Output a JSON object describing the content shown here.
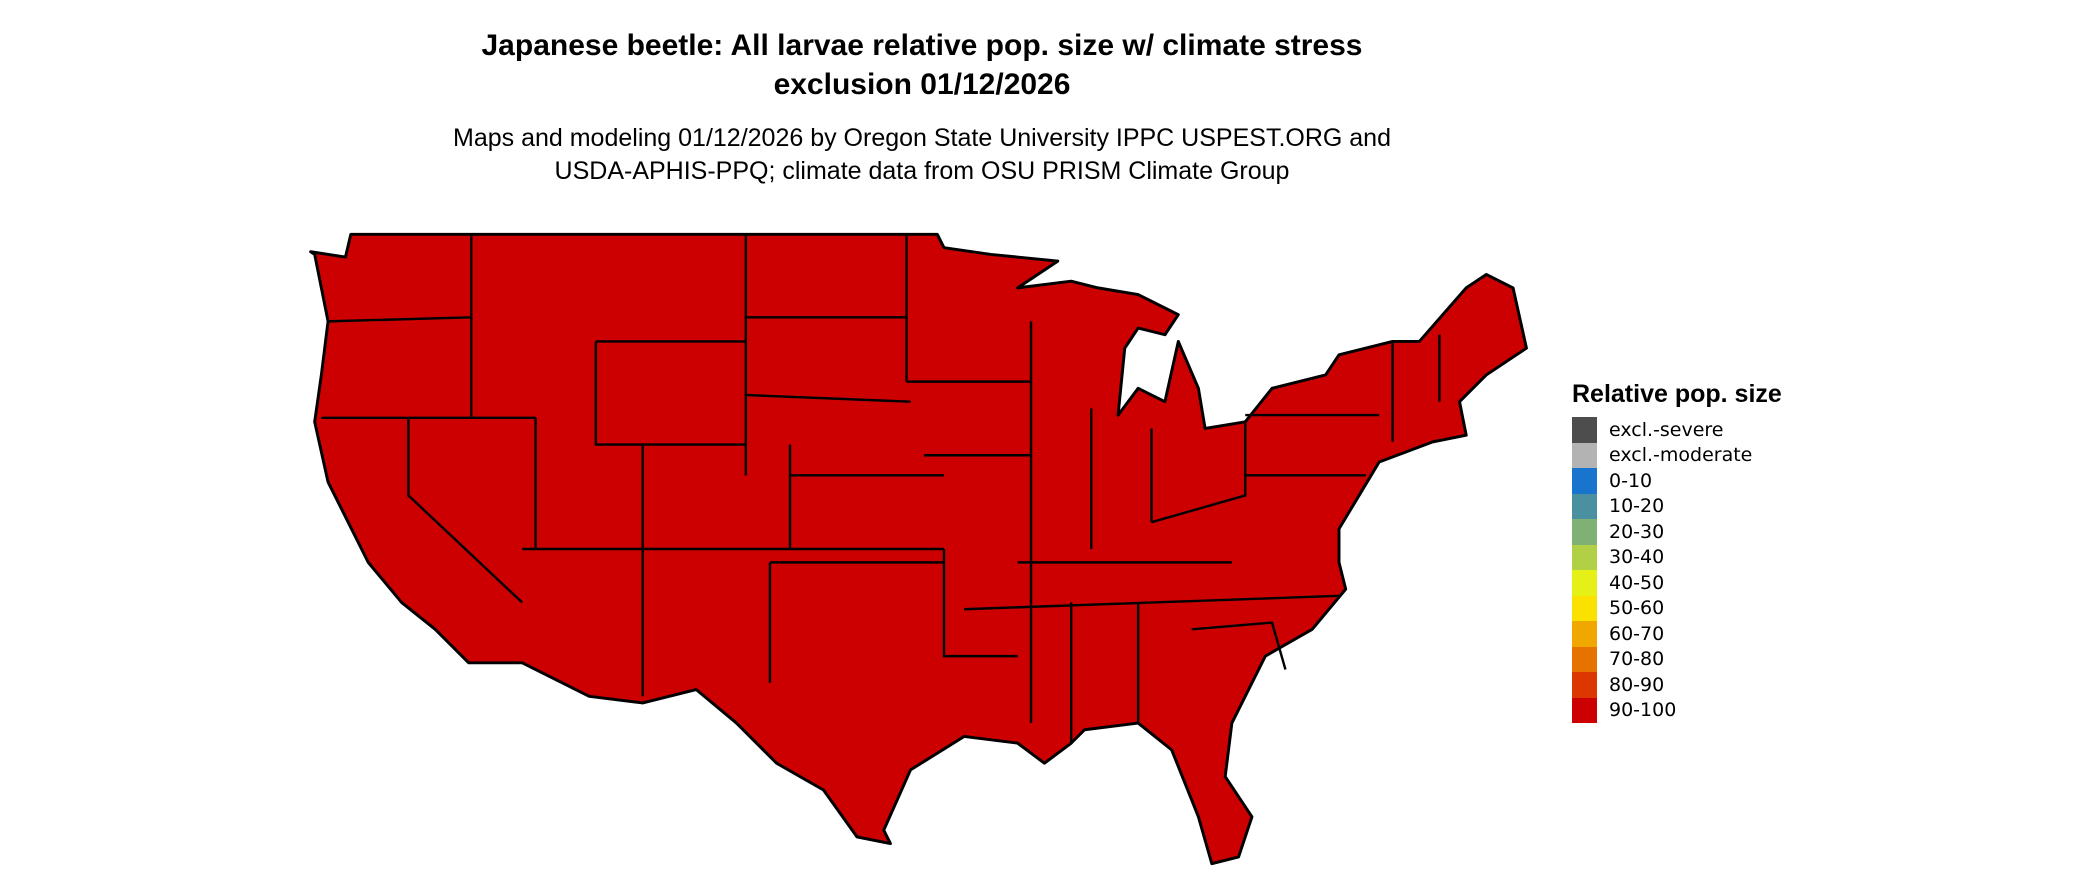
{
  "title": {
    "line1": "Japanese beetle: All larvae relative pop. size w/ climate stress",
    "line2": "exclusion 01/12/2026"
  },
  "subtitle": {
    "line1": "Maps and modeling 01/12/2026 by Oregon State University IPPC USPEST.ORG and",
    "line2": "USDA-APHIS-PPQ; climate data from OSU PRISM Climate Group"
  },
  "map": {
    "region": "Contiguous United States",
    "displayed_category": "90-100",
    "fill_color": "#CC0000",
    "border_color": "#000000"
  },
  "legend": {
    "title": "Relative pop. size",
    "items": [
      {
        "label": "excl.-severe",
        "color": "#4D4D4D"
      },
      {
        "label": "excl.-moderate",
        "color": "#B3B3B3"
      },
      {
        "label": "0-10",
        "color": "#1874CD"
      },
      {
        "label": "10-20",
        "color": "#4A90A0"
      },
      {
        "label": "20-30",
        "color": "#7FB074"
      },
      {
        "label": "30-40",
        "color": "#B2D046"
      },
      {
        "label": "40-50",
        "color": "#E5F016"
      },
      {
        "label": "50-60",
        "color": "#FAE100"
      },
      {
        "label": "60-70",
        "color": "#F0A800"
      },
      {
        "label": "70-80",
        "color": "#E67300"
      },
      {
        "label": "80-90",
        "color": "#DC3700"
      },
      {
        "label": "90-100",
        "color": "#CC0000"
      }
    ]
  }
}
